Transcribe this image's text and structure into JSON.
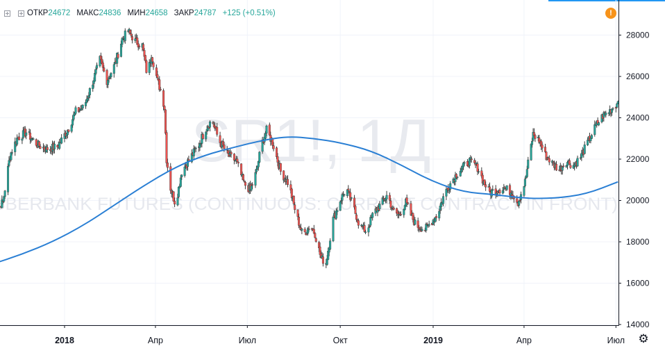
{
  "legend": {
    "open_label": "ОТКР",
    "open_value": "24672",
    "high_label": "МАКС",
    "high_value": "24836",
    "low_label": "МИН",
    "low_value": "24658",
    "close_label": "ЗАКР",
    "close_value": "24787",
    "change": "+125 (+0.51%)"
  },
  "watermark": {
    "symbol": "SR1!, 1Д",
    "description": "SBERBANK FUTURES (CONTINUOUS: CURRENT CONTRACT IN FRONT)"
  },
  "colors": {
    "up": "#26a69a",
    "down": "#ef5350",
    "ma_line": "#2a7fd4",
    "grid": "#f0f3fa",
    "axis": "#131722",
    "alert": "#f7931a"
  },
  "icons": {
    "alert": "exclamation-icon",
    "settings": "gear-icon",
    "legend_toggle": "plus-box-icon"
  },
  "alert_badge": "!",
  "settings_glyph": "⚙",
  "chart_data": {
    "type": "candlestick",
    "y_ticks": [
      14000,
      16000,
      18000,
      20000,
      22000,
      24000,
      26000,
      28000
    ],
    "ylim": [
      14000,
      29500
    ],
    "x_ticks": [
      {
        "label": "2018",
        "date": "2018-01",
        "bold": true
      },
      {
        "label": "Апр",
        "date": "2018-04",
        "bold": false
      },
      {
        "label": "Июл",
        "date": "2018-07",
        "bold": false
      },
      {
        "label": "Окт",
        "date": "2018-10",
        "bold": false
      },
      {
        "label": "2019",
        "date": "2019-01",
        "bold": true
      },
      {
        "label": "Апр",
        "date": "2019-04",
        "bold": false
      },
      {
        "label": "Июл",
        "date": "2019-07",
        "bold": false
      }
    ],
    "price_path": [
      [
        "2017-10-20",
        19600
      ],
      [
        "2017-11-01",
        19900
      ],
      [
        "2017-11-08",
        22200
      ],
      [
        "2017-11-15",
        23000
      ],
      [
        "2017-11-24",
        23300
      ],
      [
        "2017-12-05",
        22700
      ],
      [
        "2017-12-14",
        22500
      ],
      [
        "2017-12-25",
        22600
      ],
      [
        "2018-01-05",
        23500
      ],
      [
        "2018-01-12",
        24300
      ],
      [
        "2018-01-20",
        24500
      ],
      [
        "2018-01-28",
        25600
      ],
      [
        "2018-02-05",
        26800
      ],
      [
        "2018-02-12",
        25800
      ],
      [
        "2018-02-20",
        26600
      ],
      [
        "2018-02-27",
        27800
      ],
      [
        "2018-03-05",
        28200
      ],
      [
        "2018-03-12",
        27700
      ],
      [
        "2018-03-19",
        27500
      ],
      [
        "2018-03-24",
        26000
      ],
      [
        "2018-03-28",
        27100
      ],
      [
        "2018-04-03",
        25800
      ],
      [
        "2018-04-07",
        25200
      ],
      [
        "2018-04-10",
        24500
      ],
      [
        "2018-04-12",
        22000
      ],
      [
        "2018-04-16",
        20600
      ],
      [
        "2018-04-21",
        19800
      ],
      [
        "2018-04-27",
        21400
      ],
      [
        "2018-05-06",
        22100
      ],
      [
        "2018-05-14",
        22700
      ],
      [
        "2018-05-21",
        23500
      ],
      [
        "2018-05-27",
        23900
      ],
      [
        "2018-06-03",
        22900
      ],
      [
        "2018-06-12",
        22200
      ],
      [
        "2018-06-20",
        21900
      ],
      [
        "2018-06-28",
        20800
      ],
      [
        "2018-07-04",
        20500
      ],
      [
        "2018-07-10",
        21400
      ],
      [
        "2018-07-15",
        22700
      ],
      [
        "2018-07-20",
        23400
      ],
      [
        "2018-07-26",
        22800
      ],
      [
        "2018-08-03",
        21400
      ],
      [
        "2018-08-11",
        20800
      ],
      [
        "2018-08-18",
        19400
      ],
      [
        "2018-08-25",
        18300
      ],
      [
        "2018-09-01",
        18800
      ],
      [
        "2018-09-06",
        18400
      ],
      [
        "2018-09-12",
        17200
      ],
      [
        "2018-09-17",
        17000
      ],
      [
        "2018-09-24",
        19100
      ],
      [
        "2018-10-01",
        20000
      ],
      [
        "2018-10-07",
        20600
      ],
      [
        "2018-10-14",
        19700
      ],
      [
        "2018-10-20",
        18800
      ],
      [
        "2018-10-27",
        18500
      ],
      [
        "2018-11-03",
        19400
      ],
      [
        "2018-11-10",
        19800
      ],
      [
        "2018-11-17",
        20300
      ],
      [
        "2018-11-22",
        19500
      ],
      [
        "2018-11-28",
        19300
      ],
      [
        "2018-12-05",
        19900
      ],
      [
        "2018-12-10",
        19300
      ],
      [
        "2018-12-15",
        18800
      ],
      [
        "2018-12-24",
        18600
      ],
      [
        "2019-01-05",
        19300
      ],
      [
        "2019-01-12",
        20300
      ],
      [
        "2019-01-20",
        21000
      ],
      [
        "2019-01-28",
        21500
      ],
      [
        "2019-02-06",
        21900
      ],
      [
        "2019-02-14",
        21600
      ],
      [
        "2019-02-20",
        20900
      ],
      [
        "2019-02-26",
        20400
      ],
      [
        "2019-03-05",
        20500
      ],
      [
        "2019-03-12",
        20600
      ],
      [
        "2019-03-20",
        20400
      ],
      [
        "2019-03-26",
        19900
      ],
      [
        "2019-04-02",
        20900
      ],
      [
        "2019-04-06",
        22100
      ],
      [
        "2019-04-10",
        23200
      ],
      [
        "2019-04-16",
        22900
      ],
      [
        "2019-04-22",
        22200
      ],
      [
        "2019-04-29",
        21800
      ],
      [
        "2019-05-06",
        21500
      ],
      [
        "2019-05-13",
        21900
      ],
      [
        "2019-05-20",
        21700
      ],
      [
        "2019-05-27",
        22100
      ],
      [
        "2019-06-04",
        22900
      ],
      [
        "2019-06-11",
        23600
      ],
      [
        "2019-06-18",
        24100
      ],
      [
        "2019-06-24",
        24300
      ],
      [
        "2019-06-30",
        24600
      ],
      [
        "2019-07-03",
        24700
      ]
    ],
    "ma_line": [
      [
        "2017-10-20",
        16900
      ],
      [
        "2017-11-20",
        17400
      ],
      [
        "2017-12-20",
        18000
      ],
      [
        "2018-01-20",
        18800
      ],
      [
        "2018-02-20",
        19800
      ],
      [
        "2018-03-20",
        20700
      ],
      [
        "2018-04-20",
        21600
      ],
      [
        "2018-05-20",
        22200
      ],
      [
        "2018-06-20",
        22600
      ],
      [
        "2018-07-15",
        22900
      ],
      [
        "2018-08-10",
        23100
      ],
      [
        "2018-09-05",
        23000
      ],
      [
        "2018-10-01",
        22800
      ],
      [
        "2018-11-01",
        22400
      ],
      [
        "2018-12-01",
        21700
      ],
      [
        "2019-01-01",
        20900
      ],
      [
        "2019-02-01",
        20400
      ],
      [
        "2019-03-01",
        20300
      ],
      [
        "2019-04-01",
        20100
      ],
      [
        "2019-05-01",
        20100
      ],
      [
        "2019-06-01",
        20300
      ],
      [
        "2019-07-03",
        20900
      ]
    ],
    "last": {
      "open": 24672,
      "high": 24836,
      "low": 24658,
      "close": 24787
    }
  }
}
